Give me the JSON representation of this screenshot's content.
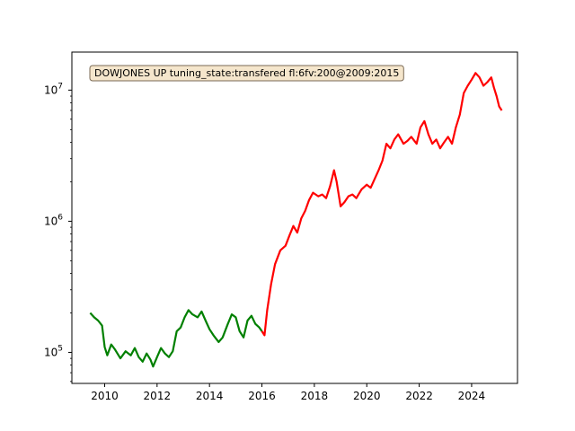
{
  "chart_data": {
    "type": "line",
    "title": "",
    "xlabel": "",
    "ylabel": "",
    "yscale": "log",
    "xlim": [
      2008.75,
      2025.75
    ],
    "ylim": [
      58000,
      19500000
    ],
    "grid": false,
    "annotation": "DOWJONES UP tuning_state:transfered fl:6fv:200@2009:2015",
    "annotation_placement": "top-left",
    "x_ticks": [
      {
        "value": 2010,
        "label": "2010"
      },
      {
        "value": 2012,
        "label": "2012"
      },
      {
        "value": 2014,
        "label": "2014"
      },
      {
        "value": 2016,
        "label": "2016"
      },
      {
        "value": 2018,
        "label": "2018"
      },
      {
        "value": 2020,
        "label": "2020"
      },
      {
        "value": 2022,
        "label": "2022"
      },
      {
        "value": 2024,
        "label": "2024"
      }
    ],
    "y_ticks": [
      {
        "value": 100000,
        "base": "10",
        "exp": "5"
      },
      {
        "value": 1000000,
        "base": "10",
        "exp": "6"
      },
      {
        "value": 10000000,
        "base": "10",
        "exp": "7"
      }
    ],
    "series": [
      {
        "color": "#008000",
        "points": [
          [
            2009.45,
            200000
          ],
          [
            2009.6,
            185000
          ],
          [
            2009.75,
            175000
          ],
          [
            2009.9,
            160000
          ],
          [
            2010.0,
            110000
          ],
          [
            2010.1,
            95000
          ],
          [
            2010.25,
            115000
          ],
          [
            2010.4,
            105000
          ],
          [
            2010.6,
            90000
          ],
          [
            2010.8,
            102000
          ],
          [
            2011.0,
            95000
          ],
          [
            2011.15,
            108000
          ],
          [
            2011.3,
            92000
          ],
          [
            2011.45,
            85000
          ],
          [
            2011.6,
            98000
          ],
          [
            2011.75,
            88000
          ],
          [
            2011.85,
            78000
          ],
          [
            2012.0,
            92000
          ],
          [
            2012.15,
            108000
          ],
          [
            2012.3,
            98000
          ],
          [
            2012.45,
            92000
          ],
          [
            2012.6,
            102000
          ],
          [
            2012.75,
            145000
          ],
          [
            2012.9,
            155000
          ],
          [
            2013.05,
            185000
          ],
          [
            2013.2,
            210000
          ],
          [
            2013.35,
            195000
          ],
          [
            2013.55,
            185000
          ],
          [
            2013.7,
            205000
          ],
          [
            2013.85,
            175000
          ],
          [
            2014.0,
            150000
          ],
          [
            2014.15,
            135000
          ],
          [
            2014.35,
            120000
          ],
          [
            2014.5,
            130000
          ],
          [
            2014.7,
            165000
          ],
          [
            2014.85,
            195000
          ],
          [
            2015.0,
            185000
          ],
          [
            2015.15,
            145000
          ],
          [
            2015.3,
            130000
          ],
          [
            2015.45,
            175000
          ],
          [
            2015.6,
            190000
          ],
          [
            2015.75,
            165000
          ],
          [
            2015.9,
            155000
          ],
          [
            2016.0,
            145000
          ]
        ]
      },
      {
        "color": "#ff0000",
        "points": [
          [
            2016.0,
            145000
          ],
          [
            2016.1,
            135000
          ],
          [
            2016.2,
            210000
          ],
          [
            2016.35,
            330000
          ],
          [
            2016.5,
            470000
          ],
          [
            2016.7,
            600000
          ],
          [
            2016.9,
            650000
          ],
          [
            2017.05,
            780000
          ],
          [
            2017.2,
            920000
          ],
          [
            2017.35,
            820000
          ],
          [
            2017.5,
            1050000
          ],
          [
            2017.65,
            1200000
          ],
          [
            2017.8,
            1450000
          ],
          [
            2017.95,
            1650000
          ],
          [
            2018.15,
            1550000
          ],
          [
            2018.3,
            1600000
          ],
          [
            2018.45,
            1500000
          ],
          [
            2018.6,
            1850000
          ],
          [
            2018.75,
            2450000
          ],
          [
            2018.85,
            2000000
          ],
          [
            2019.0,
            1300000
          ],
          [
            2019.15,
            1400000
          ],
          [
            2019.3,
            1550000
          ],
          [
            2019.45,
            1600000
          ],
          [
            2019.6,
            1500000
          ],
          [
            2019.8,
            1750000
          ],
          [
            2020.0,
            1900000
          ],
          [
            2020.15,
            1800000
          ],
          [
            2020.3,
            2100000
          ],
          [
            2020.45,
            2450000
          ],
          [
            2020.6,
            2900000
          ],
          [
            2020.75,
            3900000
          ],
          [
            2020.9,
            3600000
          ],
          [
            2021.05,
            4200000
          ],
          [
            2021.2,
            4600000
          ],
          [
            2021.4,
            3900000
          ],
          [
            2021.55,
            4100000
          ],
          [
            2021.7,
            4400000
          ],
          [
            2021.9,
            3900000
          ],
          [
            2022.05,
            5200000
          ],
          [
            2022.2,
            5800000
          ],
          [
            2022.35,
            4600000
          ],
          [
            2022.5,
            3900000
          ],
          [
            2022.65,
            4200000
          ],
          [
            2022.8,
            3600000
          ],
          [
            2022.95,
            4000000
          ],
          [
            2023.1,
            4400000
          ],
          [
            2023.25,
            3900000
          ],
          [
            2023.4,
            5200000
          ],
          [
            2023.55,
            6500000
          ],
          [
            2023.7,
            9500000
          ],
          [
            2023.85,
            10800000
          ],
          [
            2024.0,
            12000000
          ],
          [
            2024.15,
            13500000
          ],
          [
            2024.3,
            12500000
          ],
          [
            2024.45,
            10800000
          ],
          [
            2024.6,
            11500000
          ],
          [
            2024.75,
            12500000
          ],
          [
            2024.85,
            10500000
          ],
          [
            2024.95,
            9000000
          ],
          [
            2025.05,
            7500000
          ],
          [
            2025.15,
            7000000
          ]
        ]
      }
    ]
  }
}
